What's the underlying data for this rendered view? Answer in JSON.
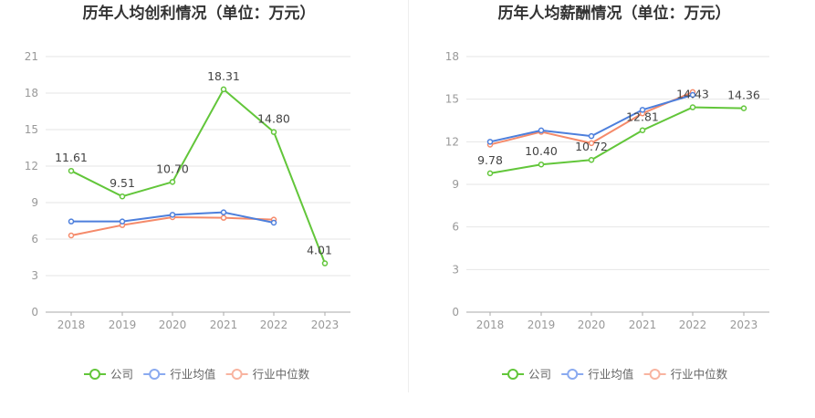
{
  "chart_data": [
    {
      "type": "line",
      "title": "历年人均创利情况（单位：万元）",
      "categories": [
        "2018",
        "2019",
        "2020",
        "2021",
        "2022",
        "2023"
      ],
      "ylim": [
        0,
        21
      ],
      "yticks": [
        "0",
        "3",
        "6",
        "9",
        "12",
        "15",
        "18",
        "21"
      ],
      "grid": true,
      "legend_position": "bottom",
      "series": [
        {
          "name": "公司",
          "color": "#62c63a",
          "values": [
            11.61,
            9.51,
            10.7,
            18.31,
            14.8,
            4.01
          ],
          "labels": [
            "11.61",
            "9.51",
            "10.70",
            "18.31",
            "14.80",
            "4.01"
          ]
        },
        {
          "name": "行业均值",
          "color": "#4d7fdc",
          "values": [
            7.45,
            7.45,
            8.0,
            8.2,
            7.35,
            null
          ]
        },
        {
          "name": "行业中位数",
          "color": "#f58a6a",
          "values": [
            6.3,
            7.15,
            7.8,
            7.75,
            7.6,
            null
          ]
        }
      ]
    },
    {
      "type": "line",
      "title": "历年人均薪酬情况（单位：万元）",
      "categories": [
        "2018",
        "2019",
        "2020",
        "2021",
        "2022",
        "2023"
      ],
      "ylim": [
        0,
        18
      ],
      "yticks": [
        "0",
        "3",
        "6",
        "9",
        "12",
        "15",
        "18"
      ],
      "grid": true,
      "legend_position": "bottom",
      "series": [
        {
          "name": "公司",
          "color": "#62c63a",
          "values": [
            9.78,
            10.4,
            10.72,
            12.81,
            14.43,
            14.36
          ],
          "labels": [
            "9.78",
            "10.40",
            "10.72",
            "12.81",
            "14.43",
            "14.36"
          ]
        },
        {
          "name": "行业均值",
          "color": "#4d7fdc",
          "values": [
            12.0,
            12.8,
            12.4,
            14.25,
            15.3,
            null
          ]
        },
        {
          "name": "行业中位数",
          "color": "#f58a6a",
          "values": [
            11.8,
            12.7,
            11.9,
            14.0,
            15.5,
            null
          ]
        }
      ]
    }
  ]
}
